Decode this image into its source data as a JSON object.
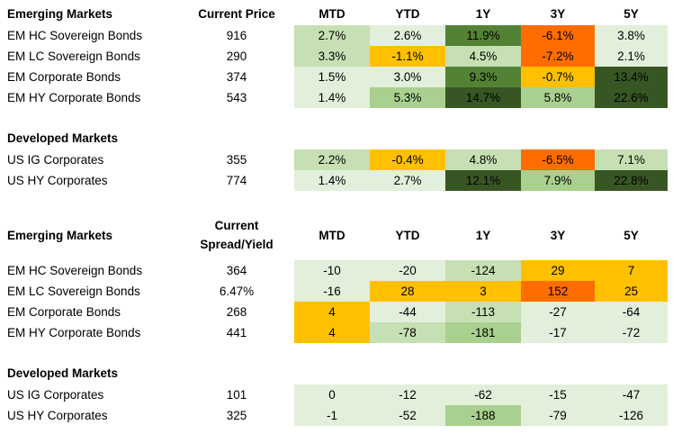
{
  "colors": {
    "light": "#e2efda",
    "pale": "#c6e0b4",
    "mid": "#a9d08e",
    "dark": "#548235",
    "darkest": "#375623",
    "amber": "#ffc000",
    "orange": "#ff6d00",
    "none": "#ffffff"
  },
  "table1": {
    "title": "Emerging Markets",
    "price_header": "Current Price",
    "periods": [
      "MTD",
      "YTD",
      "1Y",
      "3Y",
      "5Y"
    ],
    "rows": [
      {
        "name": "EM HC Sovereign Bonds",
        "value": "916",
        "cells": [
          [
            "2.7%",
            "pale"
          ],
          [
            "2.6%",
            "light"
          ],
          [
            "11.9%",
            "dark"
          ],
          [
            "-6.1%",
            "orange"
          ],
          [
            "3.8%",
            "light"
          ]
        ]
      },
      {
        "name": "EM LC Sovereign Bonds",
        "value": "290",
        "cells": [
          [
            "3.3%",
            "pale"
          ],
          [
            "-1.1%",
            "amber"
          ],
          [
            "4.5%",
            "pale"
          ],
          [
            "-7.2%",
            "orange"
          ],
          [
            "2.1%",
            "light"
          ]
        ]
      },
      {
        "name": "EM Corporate Bonds",
        "value": "374",
        "cells": [
          [
            "1.5%",
            "light"
          ],
          [
            "3.0%",
            "light"
          ],
          [
            "9.3%",
            "dark"
          ],
          [
            "-0.7%",
            "amber"
          ],
          [
            "13.4%",
            "darkest"
          ]
        ]
      },
      {
        "name": "EM HY Corporate Bonds",
        "value": "543",
        "cells": [
          [
            "1.4%",
            "light"
          ],
          [
            "5.3%",
            "mid"
          ],
          [
            "14.7%",
            "darkest"
          ],
          [
            "5.8%",
            "mid"
          ],
          [
            "22.6%",
            "darkest"
          ]
        ]
      }
    ],
    "dev_title": "Developed Markets",
    "dev_rows": [
      {
        "name": "US IG Corporates",
        "value": "355",
        "cells": [
          [
            "2.2%",
            "pale"
          ],
          [
            "-0.4%",
            "amber"
          ],
          [
            "4.8%",
            "pale"
          ],
          [
            "-6.5%",
            "orange"
          ],
          [
            "7.1%",
            "pale"
          ]
        ]
      },
      {
        "name": "US HY Corporates",
        "value": "774",
        "cells": [
          [
            "1.4%",
            "light"
          ],
          [
            "2.7%",
            "light"
          ],
          [
            "12.1%",
            "darkest"
          ],
          [
            "7.9%",
            "mid"
          ],
          [
            "22.8%",
            "darkest"
          ]
        ]
      }
    ]
  },
  "table2": {
    "title": "Emerging Markets",
    "spread_header_line1": "Current",
    "spread_header_line2": "Spread/Yield",
    "periods": [
      "MTD",
      "YTD",
      "1Y",
      "3Y",
      "5Y"
    ],
    "rows": [
      {
        "name": "EM HC Sovereign Bonds",
        "value": "364",
        "cells": [
          [
            "-10",
            "light"
          ],
          [
            "-20",
            "light"
          ],
          [
            "-124",
            "pale"
          ],
          [
            "29",
            "amber"
          ],
          [
            "7",
            "amber"
          ]
        ]
      },
      {
        "name": "EM LC Sovereign Bonds",
        "value": "6.47%",
        "cells": [
          [
            "-16",
            "light"
          ],
          [
            "28",
            "amber"
          ],
          [
            "3",
            "amber"
          ],
          [
            "152",
            "orange"
          ],
          [
            "25",
            "amber"
          ]
        ]
      },
      {
        "name": "EM Corporate Bonds",
        "value": "268",
        "cells": [
          [
            "4",
            "amber"
          ],
          [
            "-44",
            "light"
          ],
          [
            "-113",
            "pale"
          ],
          [
            "-27",
            "light"
          ],
          [
            "-64",
            "light"
          ]
        ]
      },
      {
        "name": "EM HY Corporate Bonds",
        "value": "441",
        "cells": [
          [
            "4",
            "amber"
          ],
          [
            "-78",
            "pale"
          ],
          [
            "-181",
            "mid"
          ],
          [
            "-17",
            "light"
          ],
          [
            "-72",
            "light"
          ]
        ]
      }
    ],
    "dev_title": "Developed Markets",
    "dev_rows": [
      {
        "name": "US IG Corporates",
        "value": "101",
        "cells": [
          [
            "0",
            "light"
          ],
          [
            "-12",
            "light"
          ],
          [
            "-62",
            "light"
          ],
          [
            "-15",
            "light"
          ],
          [
            "-47",
            "light"
          ]
        ]
      },
      {
        "name": "US HY Corporates",
        "value": "325",
        "cells": [
          [
            "-1",
            "light"
          ],
          [
            "-52",
            "light"
          ],
          [
            "-188",
            "mid"
          ],
          [
            "-79",
            "light"
          ],
          [
            "-126",
            "light"
          ]
        ]
      }
    ]
  }
}
